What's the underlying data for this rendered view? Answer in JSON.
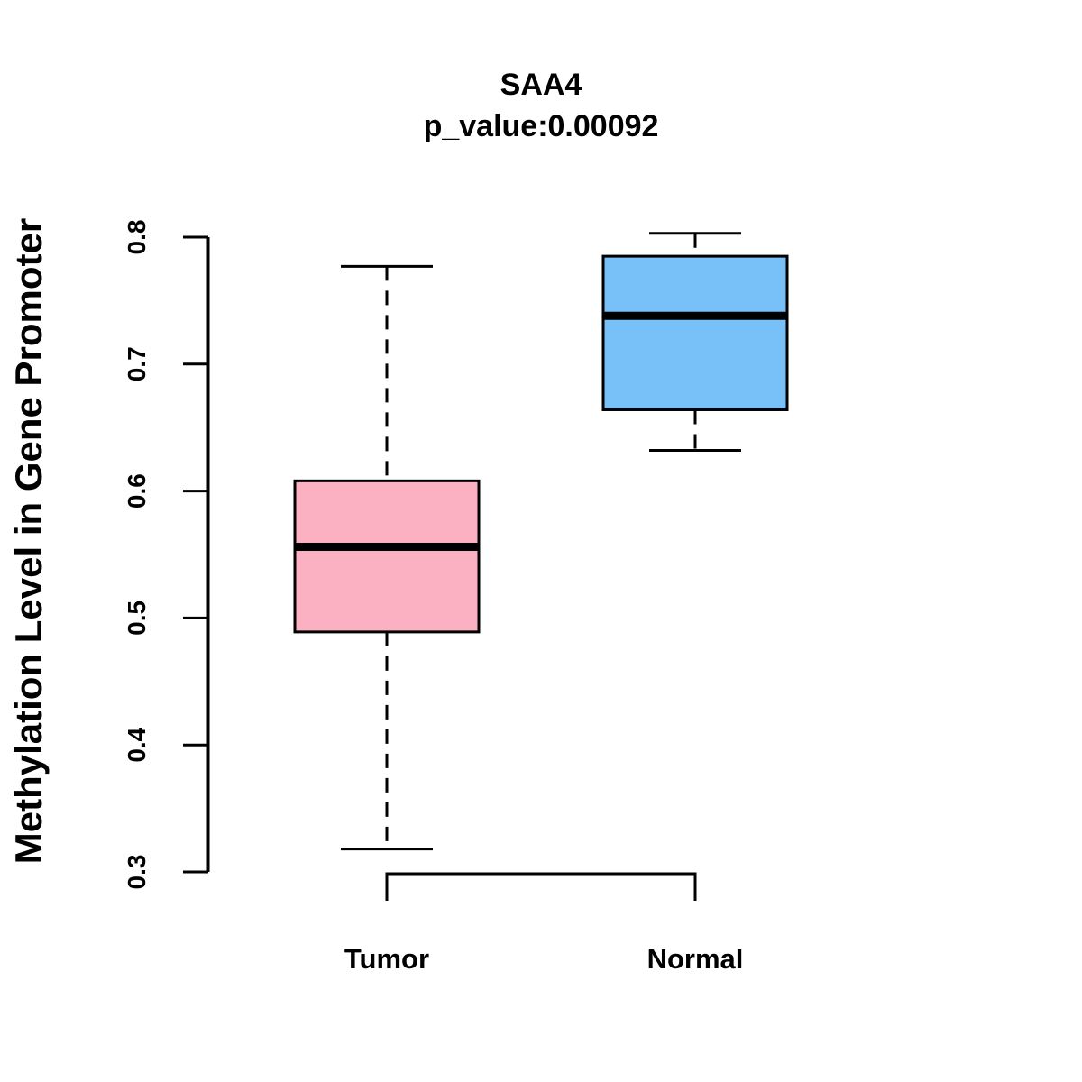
{
  "chart_data": {
    "type": "boxplot",
    "title": "SAA4",
    "subtitle": "p_value:0.00092",
    "xlabel": "",
    "ylabel": "Methylation Level in Gene Promoter",
    "ylim": [
      0.3,
      0.8
    ],
    "yticks": [
      0.3,
      0.4,
      0.5,
      0.6,
      0.7,
      0.8
    ],
    "ytick_labels": [
      "0.3",
      "0.4",
      "0.5",
      "0.6",
      "0.7",
      "0.8"
    ],
    "categories": [
      "Tumor",
      "Normal"
    ],
    "boxes": [
      {
        "name": "Tumor",
        "whisker_low": 0.318,
        "q1": 0.489,
        "median": 0.556,
        "q3": 0.608,
        "whisker_high": 0.777,
        "color": "#FBB1C1"
      },
      {
        "name": "Normal",
        "whisker_low": 0.632,
        "q1": 0.664,
        "median": 0.738,
        "q3": 0.785,
        "whisker_high": 0.803,
        "color": "#77C0F8"
      }
    ],
    "significance_bracket": {
      "from": "Tumor",
      "to": "Normal"
    }
  }
}
